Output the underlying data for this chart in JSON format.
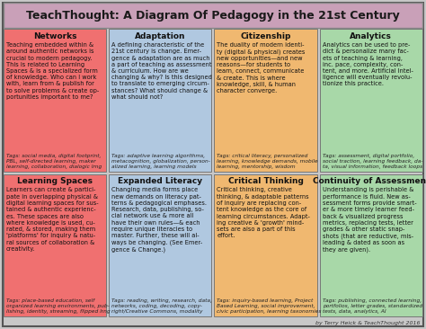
{
  "title": "TeachThought: A Diagram Of Pedagogy in the 21st Century",
  "title_bg": "#c9a0b8",
  "outer_bg": "#c8c8c8",
  "border_color": "#555555",
  "cells": [
    {
      "col": 0,
      "row": 0,
      "title": "Networks",
      "bg": "#f07070",
      "body": "Teaching embedded within &\naround authentic networks is\ncrucial to modern pedagogy.\nThis is related to Learning\nSpaces & is a specialized form\nof knowledge. Who can I work\nwith, learn from & publish for\nto solve problems & create op-\nportunities important to me?",
      "tags": "Tags: social media, digital footprint,\nPBL, self-directed learning, maker\nlearning, collaboration, dialogic lrng"
    },
    {
      "col": 1,
      "row": 0,
      "title": "Adaptation",
      "bg": "#b0c8e0",
      "body": "A defining characteristic of the\n21st century is change. Emer-\ngence & adaptation are as much\na part of teaching as assessment\n& curriculum. How are we\nchanging & why? Is this designed\nto translate to emerging circum-\nstances? What should change &\nwhat should not?",
      "tags": "Tags: adaptive learning algorithms,\nmetacognition, globalization, person-\nalized learning, learning models"
    },
    {
      "col": 2,
      "row": 0,
      "title": "Citizenship",
      "bg": "#f0b870",
      "body": "The duality of modern identi-\nty (digital & physical) creates\nnew opportunities—and new\nreasons—for students to\nlearn, connect, communicate\n& create. This is where\nknowledge, skill, & human\ncharacter converge.",
      "tags": "Tags: critical literacy, personalized\nlearning, knowledge demands, mobile\nlearning, mentorship, wisdom"
    },
    {
      "col": 3,
      "row": 0,
      "title": "Analytics",
      "bg": "#a8d8a8",
      "body": "Analytics can be used to pre-\ndict & personalize many fac-\nets of teaching & learning,\ninc. pace, complexity, con-\ntent, and more. Artificial Intel-\nligence will eventually revolu-\ntionize this practice.",
      "tags": "Tags: assessment, digital portfolio,\nsocial traction, learning feedback, da-\nta, visual information, feedback loops"
    },
    {
      "col": 0,
      "row": 1,
      "title": "Learning Spaces",
      "bg": "#f07070",
      "body": "Learners can create & partici-\npate in overlapping physical &\ndigital learning spaces for sus-\ntained & authentic experienc-\nes. These spaces are also\nwhere knowledge is used, cu-\nrated, & stored, making them\n'platforms' for inquiry & natu-\nral sources of collaboration &\ncreativity.",
      "tags": "Tags: place-based education, self\norganized learning environments, pub-\nlishing, identity, streaming, flipped lrng"
    },
    {
      "col": 1,
      "row": 1,
      "title": "Expanded Literacy",
      "bg": "#b0c8e0",
      "body": "Changing media forms place\nnew demands on literacy pat-\nterns & pedagogical emphases.\nResearch, data, publishing, so-\ncial network use & more all\nhave their own rules—& each\nrequire unique literacies to\nmaster. Further, these will al-\nways be changing. (See Emer-\ngence & Change.)",
      "tags": "Tags: reading, writing, research, data,\nnetworks, coding, decoding, copy-\nright/Creative Commons, modality"
    },
    {
      "col": 2,
      "row": 1,
      "title": "Critical Thinking",
      "bg": "#f0b870",
      "body": "Critical thinking, creative\nthinking, & adaptable patterns\nof inquiry are replacing con-\ntent knowledge as the core of\nlearning circumstances. Adapt-\ning creative & 'growth' mind-\nsets are also a part of this\neffort.",
      "tags": "Tags: inquiry-based learning, Project\nBased Learning, social improvement,\ncivic participation, learning taxonomies"
    },
    {
      "col": 3,
      "row": 1,
      "title": "Continuity of Assessment",
      "bg": "#a8d8a8",
      "body": "Understanding is perishable &\nperformance is fluid. New as-\nsessment forms provide smart-\ner & more timely learner feed-\nback & visualized progress\nmetrics, replacing tests, letter\ngrades & other static snap-\nshots (that are reductive, mis-\nleading & dated as soon as\nthey are given).",
      "tags": "Tags: publishing, connected learning,\nportfolios, letter grades, standardized\ntests, data, analytics, AI"
    }
  ],
  "footer": "by Terry Heick & TeachThought 2016"
}
